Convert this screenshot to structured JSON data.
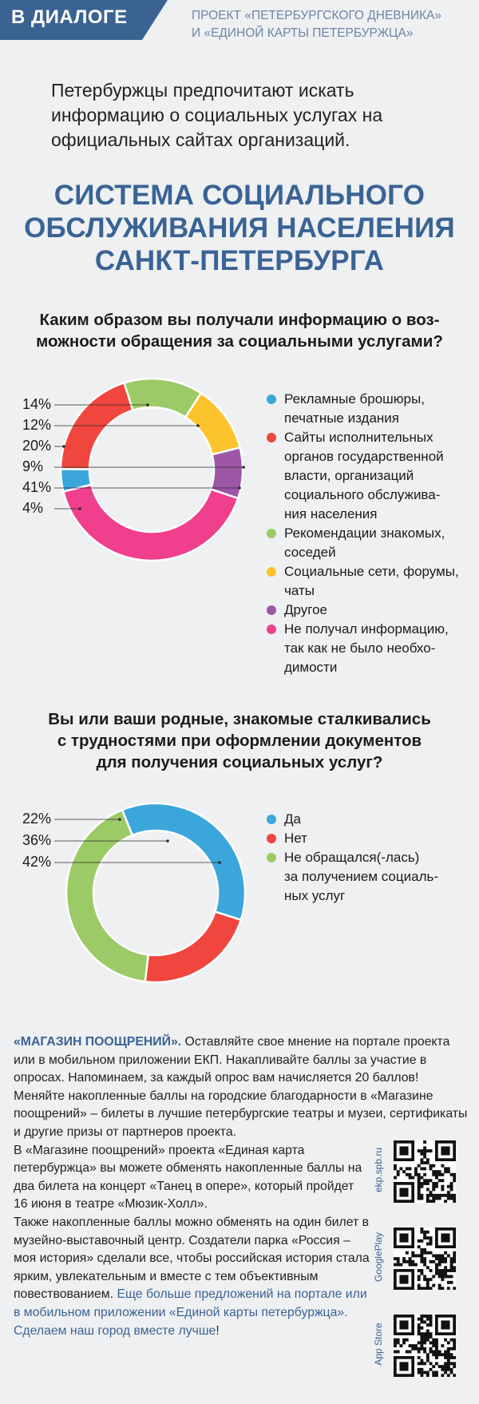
{
  "header": {
    "badge": "В ДИАЛОГЕ",
    "project_line1": "ПРОЕКТ «ПЕТЕРБУРГСКОГО ДНЕВНИКА»",
    "project_line2": "И «ЕДИНОЙ КАРТЫ ПЕТЕРБУРЖЦА»"
  },
  "lead": "Петербуржцы предпочитают искать информацию о социальных услугах на официальных сайтах организаций.",
  "main_title_lines": [
    "СИСТЕМА СОЦИАЛЬНОГО",
    "ОБСЛУЖИВАНИЯ НАСЕЛЕНИЯ",
    "САНКТ-ПЕТЕРБУРГА"
  ],
  "colors": {
    "header": "#3a6394",
    "blue": "#3aa6dc",
    "red": "#f0463d",
    "green": "#9cca66",
    "yellow": "#fcc32c",
    "purple": "#9d57a6",
    "pink": "#ef3f8d"
  },
  "chart_data": [
    {
      "type": "pie",
      "title": "Каким образом вы получали информацию о возможности обращения за социальными услугами?",
      "title_lines": [
        "Каким образом вы получали информацию о воз-",
        "можности обращения за социальными услугами?"
      ],
      "donut": true,
      "labels_left": [
        "14%",
        "12%",
        "20%",
        "9%",
        "41%",
        "4%"
      ],
      "slices": [
        {
          "label": "Рекламные брошюры, печатные издания",
          "legend_lines": [
            "Рекламные брошюры,",
            "печатные издания"
          ],
          "value": 4,
          "color": "#3aa6dc"
        },
        {
          "label": "Сайты исполнительных органов государственной власти, организаций социального обслуживания населения",
          "legend_lines": [
            "Сайты исполнительных",
            "органов государственной",
            "власти, организаций",
            "социального обслужива-",
            "ния населения"
          ],
          "value": 20,
          "color": "#f0463d"
        },
        {
          "label": "Рекомендации знакомых, соседей",
          "legend_lines": [
            "Рекомендации знакомых,",
            "соседей"
          ],
          "value": 14,
          "color": "#9cca66"
        },
        {
          "label": "Социальные сети, форумы, чаты",
          "legend_lines": [
            "Социальные сети, форумы,",
            "чаты"
          ],
          "value": 12,
          "color": "#fcc32c"
        },
        {
          "label": "Другое",
          "legend_lines": [
            "Другое"
          ],
          "value": 9,
          "color": "#9d57a6"
        },
        {
          "label": "Не получал информацию, так как не было необходимости",
          "legend_lines": [
            "Не получал информацию,",
            "так как не было необхо-",
            "димости"
          ],
          "value": 41,
          "color": "#ef3f8d"
        }
      ]
    },
    {
      "type": "pie",
      "title": "Вы или ваши родные, знакомые сталкивались с трудностями при оформлении документов для получения социальных услуг?",
      "title_lines": [
        "Вы или ваши родные, знакомые сталкивались",
        "с трудностями при оформлении документов",
        "для получения социальных услуг?"
      ],
      "donut": true,
      "labels_left": [
        "22%",
        "36%",
        "42%"
      ],
      "slices": [
        {
          "label": "Да",
          "legend_lines": [
            "Да"
          ],
          "value": 36,
          "color": "#3aa6dc"
        },
        {
          "label": "Нет",
          "legend_lines": [
            "Нет"
          ],
          "value": 22,
          "color": "#f0463d"
        },
        {
          "label": "Не обращался(-лась) за получением социальных услуг",
          "legend_lines": [
            "Не обращался(-лась)",
            "за получением социаль-",
            "ных услуг"
          ],
          "value": 42,
          "color": "#9cca66"
        }
      ]
    }
  ],
  "bottom": {
    "p1_strong": "«МАГАЗИН ПООЩРЕНИЙ».",
    "p1_text": " Оставляйте свое мнение на портале проекта или в мобильном приложении ЕКП. Накапливайте баллы за участие в опросах. Напоминаем, за каждый опрос вам начисляется 20 баллов! Меняйте накопленные баллы на городские благодарности в «Магазине поощрений» – билеты в лучшие петербургские театры и музеи, сертификаты и другие призы от партнеров проекта.",
    "p2": "В «Магазине поощрений» проекта «Единая карта петербуржца» вы можете обменять накопленные баллы на два билета на концерт «Танец в опере», который пройдет 16 июня в театре «Мюзик-Холл».",
    "p3_text": "Также накопленные баллы можно обменять на один билет в музейно-выставочный центр. Создатели парка «Россия – моя история» сделали все, чтобы российская история стала ярким, увлекательным и вместе с тем объективным повествованием. ",
    "p3_link": "Еще больше предложений на портале или в мобильном приложении «Единой карты петербуржца».",
    "p4_blue": "Сделаем наш город вместе лучше",
    "p4_end": "!"
  },
  "qr_codes": [
    {
      "label": "ekp.spb.ru"
    },
    {
      "label": "GooglePlay"
    },
    {
      "label": "App Store"
    }
  ]
}
